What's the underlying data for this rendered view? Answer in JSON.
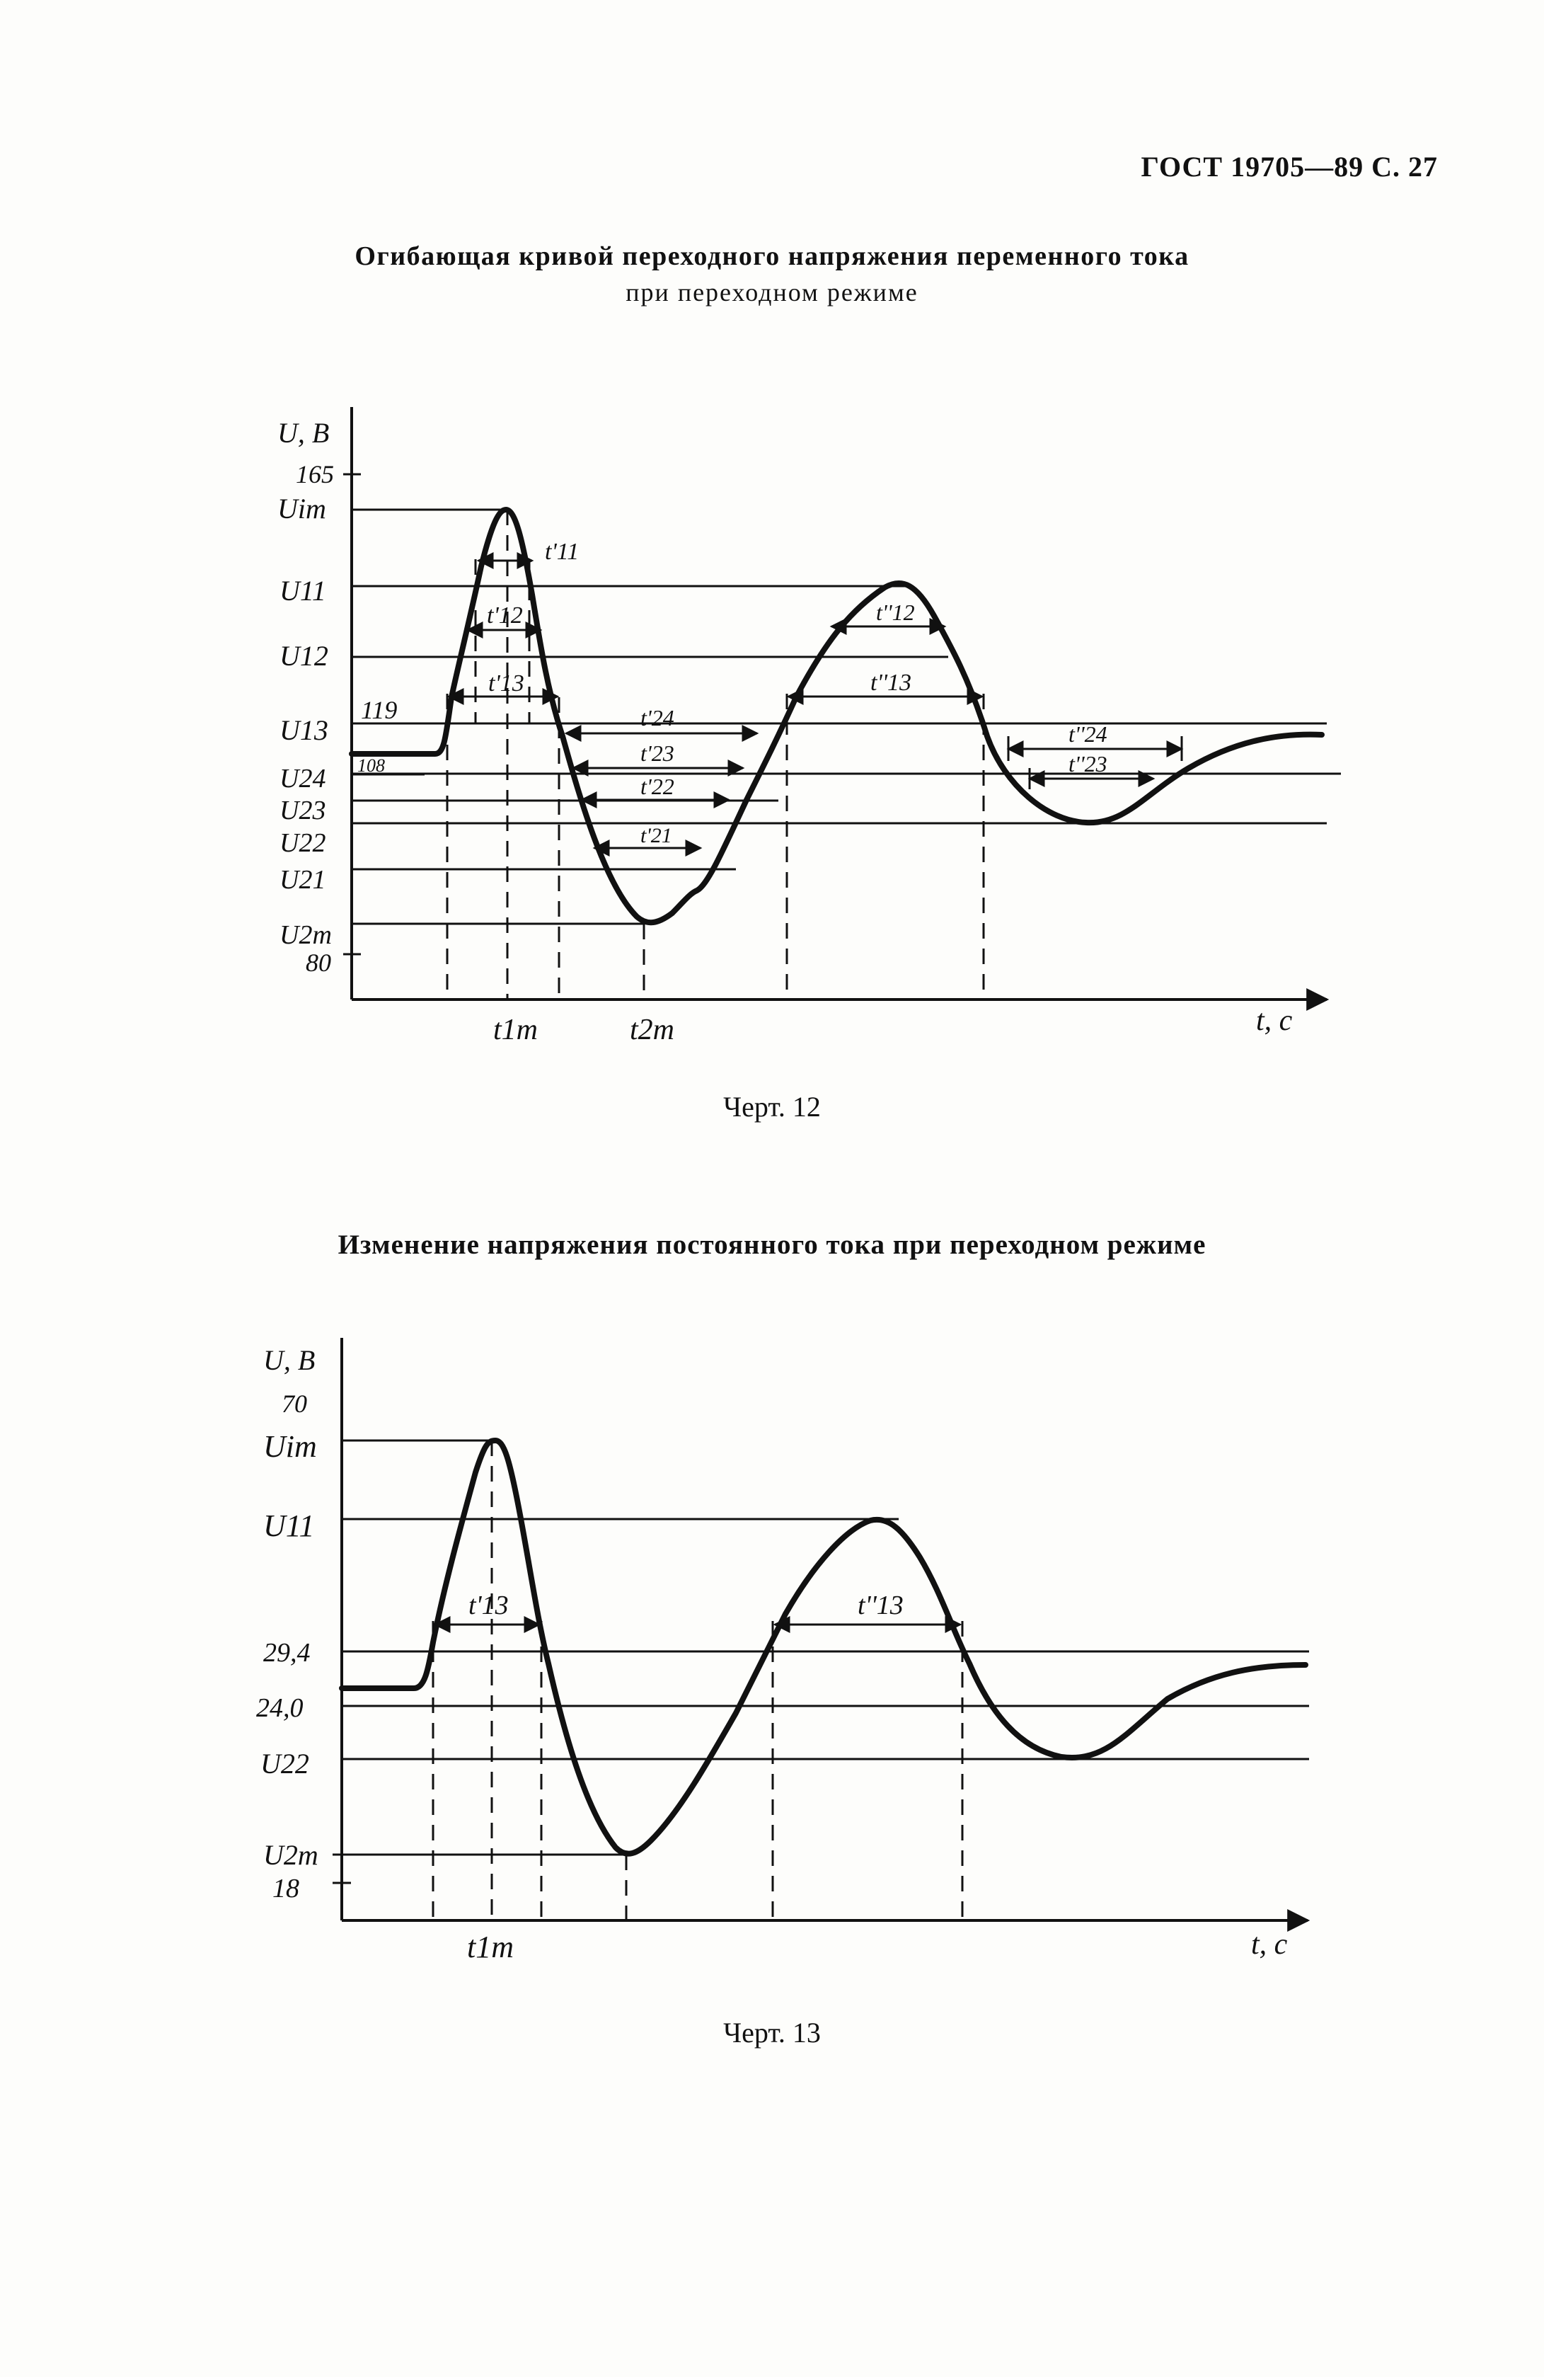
{
  "header": "ГОСТ 19705—89 С. 27",
  "figure1": {
    "title_line1": "Огибающая кривой переходного напряжения переменного тока",
    "title_line2": "при переходном режиме",
    "caption": "Черт. 12",
    "y_label": "U, B",
    "x_label": "t, c",
    "y_ticks": [
      "165",
      "Uim",
      "U11",
      "U12",
      "U13",
      "U24",
      "U23",
      "U22",
      "U21",
      "U2m",
      "80"
    ],
    "level_119": "119",
    "level_108": "108",
    "t_labels": [
      "t1m",
      "t2m"
    ],
    "interval_labels": [
      "t'11",
      "t'12",
      "t'13",
      "t'24",
      "t'23",
      "t'22",
      "t'21",
      "t''12",
      "t''13",
      "t''24",
      "t''23"
    ]
  },
  "figure2": {
    "title": "Изменение напряжения постоянного тока при переходном режиме",
    "caption": "Черт. 13",
    "y_label": "U, B",
    "x_label": "t, c",
    "y_ticks": [
      "70",
      "Uim",
      "U11",
      "29,4",
      "24,0",
      "U22",
      "U2m",
      "18"
    ],
    "t_labels": [
      "t1m"
    ],
    "interval_labels": [
      "t'13",
      "t''13"
    ]
  }
}
